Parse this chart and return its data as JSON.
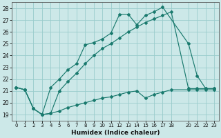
{
  "xlabel": "Humidex (Indice chaleur)",
  "ylabel": "",
  "bg_color": "#cce8e8",
  "grid_color": "#99cccc",
  "line_color": "#1a7a6e",
  "xlim": [
    -0.5,
    23.5
  ],
  "ylim": [
    18.5,
    28.5
  ],
  "xticks": [
    0,
    1,
    2,
    3,
    4,
    5,
    6,
    7,
    8,
    9,
    10,
    11,
    12,
    13,
    14,
    15,
    16,
    17,
    18,
    20,
    21,
    22,
    23
  ],
  "yticks": [
    19,
    20,
    21,
    22,
    23,
    24,
    25,
    26,
    27,
    28
  ],
  "line1_x": [
    0,
    1,
    2,
    3,
    4,
    5,
    6,
    7,
    8,
    9,
    10,
    11,
    12,
    13,
    14,
    15,
    16,
    17,
    20,
    21,
    22,
    23
  ],
  "line1_y": [
    21.3,
    21.1,
    19.5,
    19.0,
    21.3,
    22.0,
    22.8,
    23.3,
    24.9,
    25.1,
    25.4,
    25.9,
    27.5,
    27.5,
    26.6,
    27.4,
    27.7,
    28.1,
    25.0,
    22.3,
    21.2,
    21.2
  ],
  "line2_x": [
    0,
    1,
    2,
    3,
    4,
    5,
    6,
    7,
    8,
    9,
    10,
    11,
    12,
    13,
    14,
    15,
    16,
    17,
    18,
    20,
    21,
    22,
    23
  ],
  "line2_y": [
    21.3,
    21.1,
    19.5,
    19.0,
    19.1,
    21.0,
    21.8,
    22.5,
    23.3,
    24.0,
    24.6,
    25.0,
    25.5,
    26.0,
    26.4,
    26.8,
    27.1,
    27.4,
    27.7,
    21.2,
    21.2,
    21.2,
    21.2
  ],
  "line3_x": [
    0,
    1,
    2,
    3,
    4,
    5,
    6,
    7,
    8,
    9,
    10,
    11,
    12,
    13,
    14,
    15,
    16,
    17,
    18,
    20,
    21,
    22,
    23
  ],
  "line3_y": [
    21.3,
    21.1,
    19.5,
    19.0,
    19.1,
    19.3,
    19.6,
    19.8,
    20.0,
    20.2,
    20.4,
    20.5,
    20.7,
    20.9,
    21.0,
    20.4,
    20.7,
    20.9,
    21.1,
    21.1,
    21.1,
    21.1,
    21.1
  ]
}
